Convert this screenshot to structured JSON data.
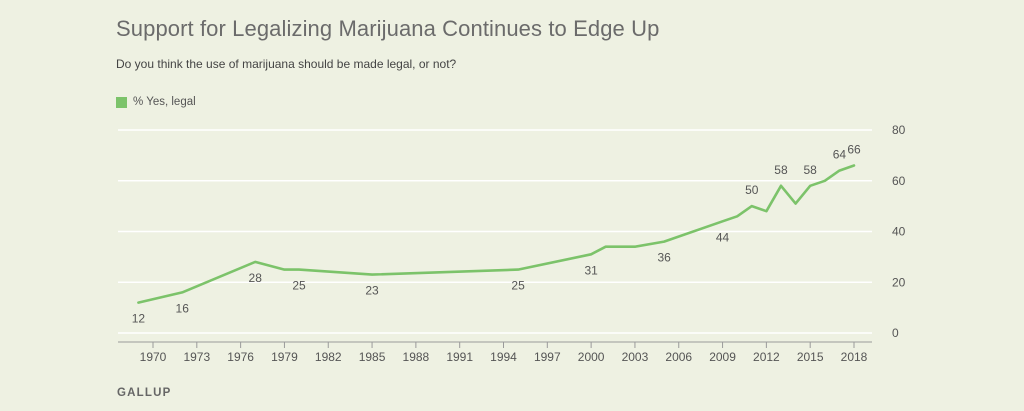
{
  "chart_data": {
    "type": "line",
    "title": "Support for Legalizing Marijuana Continues to Edge Up",
    "subtitle": "Do you think the use of marijuana should be made legal, or not?",
    "source": "GALLUP",
    "xlabel": "",
    "ylabel": "",
    "xlim": [
      1968,
      2019
    ],
    "ylim": [
      0,
      80
    ],
    "yticks": [
      0,
      20,
      40,
      60,
      80
    ],
    "xticks": [
      1970,
      1973,
      1976,
      1979,
      1982,
      1985,
      1988,
      1991,
      1994,
      1997,
      2000,
      2003,
      2006,
      2009,
      2012,
      2015,
      2018
    ],
    "grid": true,
    "legend_position": "top-left",
    "series": [
      {
        "name": "% Yes, legal",
        "color": "#7cc36a",
        "x": [
          1969,
          1972,
          1977,
          1979,
          1980,
          1985,
          1995,
          2000,
          2001,
          2003,
          2005,
          2009,
          2010,
          2011,
          2012,
          2013,
          2014,
          2015,
          2016,
          2017,
          2018
        ],
        "values": [
          12,
          16,
          28,
          25,
          25,
          23,
          25,
          31,
          34,
          34,
          36,
          44,
          46,
          50,
          48,
          58,
          51,
          58,
          60,
          64,
          66
        ]
      }
    ],
    "annotations": [
      {
        "x": 1969,
        "y": 12,
        "text": "12",
        "pos": "below"
      },
      {
        "x": 1972,
        "y": 16,
        "text": "16",
        "pos": "below"
      },
      {
        "x": 1977,
        "y": 28,
        "text": "28",
        "pos": "below"
      },
      {
        "x": 1980,
        "y": 25,
        "text": "25",
        "pos": "below"
      },
      {
        "x": 1985,
        "y": 23,
        "text": "23",
        "pos": "below"
      },
      {
        "x": 1995,
        "y": 25,
        "text": "25",
        "pos": "below"
      },
      {
        "x": 2000,
        "y": 31,
        "text": "31",
        "pos": "below"
      },
      {
        "x": 2005,
        "y": 36,
        "text": "36",
        "pos": "below"
      },
      {
        "x": 2009,
        "y": 44,
        "text": "44",
        "pos": "below"
      },
      {
        "x": 2011,
        "y": 50,
        "text": "50",
        "pos": "above"
      },
      {
        "x": 2013,
        "y": 58,
        "text": "58",
        "pos": "above"
      },
      {
        "x": 2015,
        "y": 58,
        "text": "58",
        "pos": "above"
      },
      {
        "x": 2017,
        "y": 64,
        "text": "64",
        "pos": "above"
      },
      {
        "x": 2018,
        "y": 66,
        "text": "66",
        "pos": "above"
      }
    ]
  }
}
